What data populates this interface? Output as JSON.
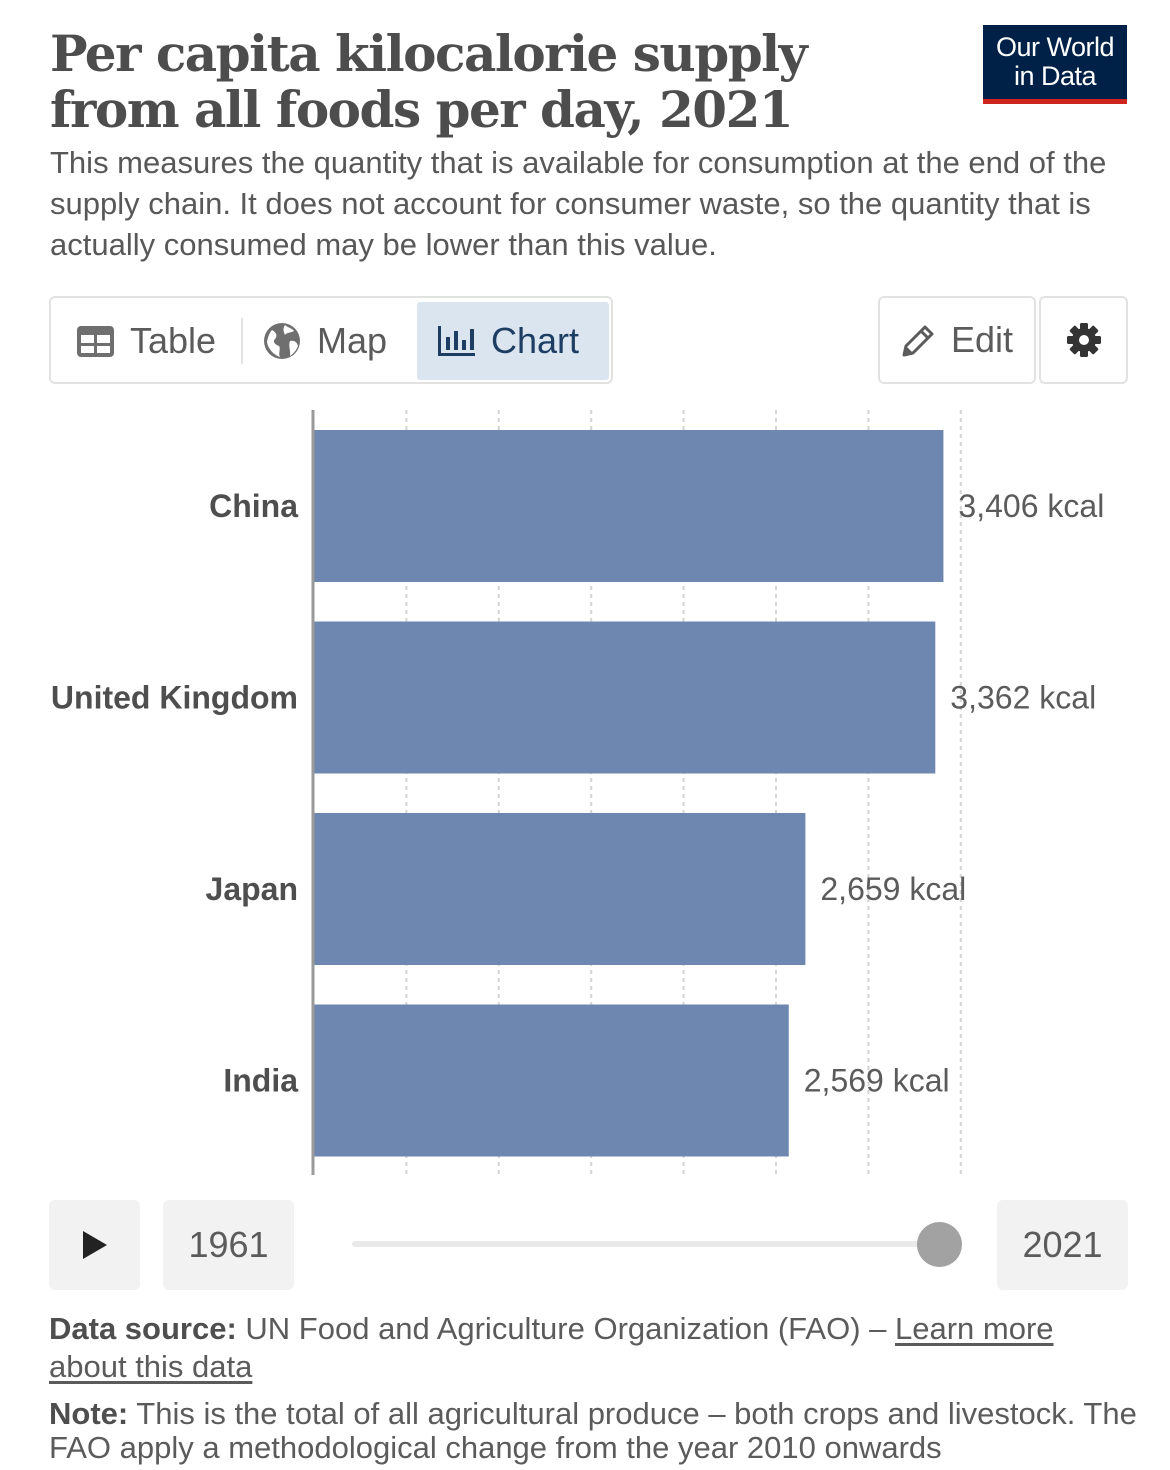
{
  "header": {
    "title": "Per capita kilocalorie supply from all foods per day, 2021",
    "subtitle": "This measures the quantity that is available for consumption at the end of the supply chain. It does not account for consumer waste, so the quantity that is actually consumed may be lower than this value.",
    "logo_line1": "Our World",
    "logo_line2": "in Data"
  },
  "tabs": [
    {
      "label": "Table",
      "icon": "table-icon"
    },
    {
      "label": "Map",
      "icon": "globe-icon"
    },
    {
      "label": "Chart",
      "icon": "bar-chart-icon",
      "active": true
    }
  ],
  "toolbar": {
    "edit_label": "Edit",
    "settings_icon": "gear-icon"
  },
  "chart_data": {
    "type": "bar",
    "orientation": "horizontal",
    "title": "Per capita kilocalorie supply from all foods per day, 2021",
    "categories": [
      "China",
      "United Kingdom",
      "Japan",
      "India"
    ],
    "values": [
      3406,
      3362,
      2659,
      2569
    ],
    "value_labels": [
      "3,406 kcal",
      "3,362 kcal",
      "2,659 kcal",
      "2,569 kcal"
    ],
    "unit": "kcal",
    "xlim": [
      0,
      4000
    ],
    "grid": "vertical dashed",
    "bar_color": "#6d87b0"
  },
  "timeline": {
    "start_year": "1961",
    "end_year": "2021",
    "position": 1.0
  },
  "footer": {
    "source_label": "Data source:",
    "source_text": " UN Food and Agriculture Organization (FAO) – ",
    "learn_more": "Learn more about this data",
    "note_label": "Note:",
    "note_text": " This is the total of all agricultural produce – both crops and livestock. The FAO apply a methodological change from the year 2010 onwards"
  },
  "colors": {
    "logo_bg": "#002147",
    "logo_accent": "#ce261e",
    "active_tab_bg": "#dbe5f0",
    "active_tab_text": "#1d3d63"
  }
}
